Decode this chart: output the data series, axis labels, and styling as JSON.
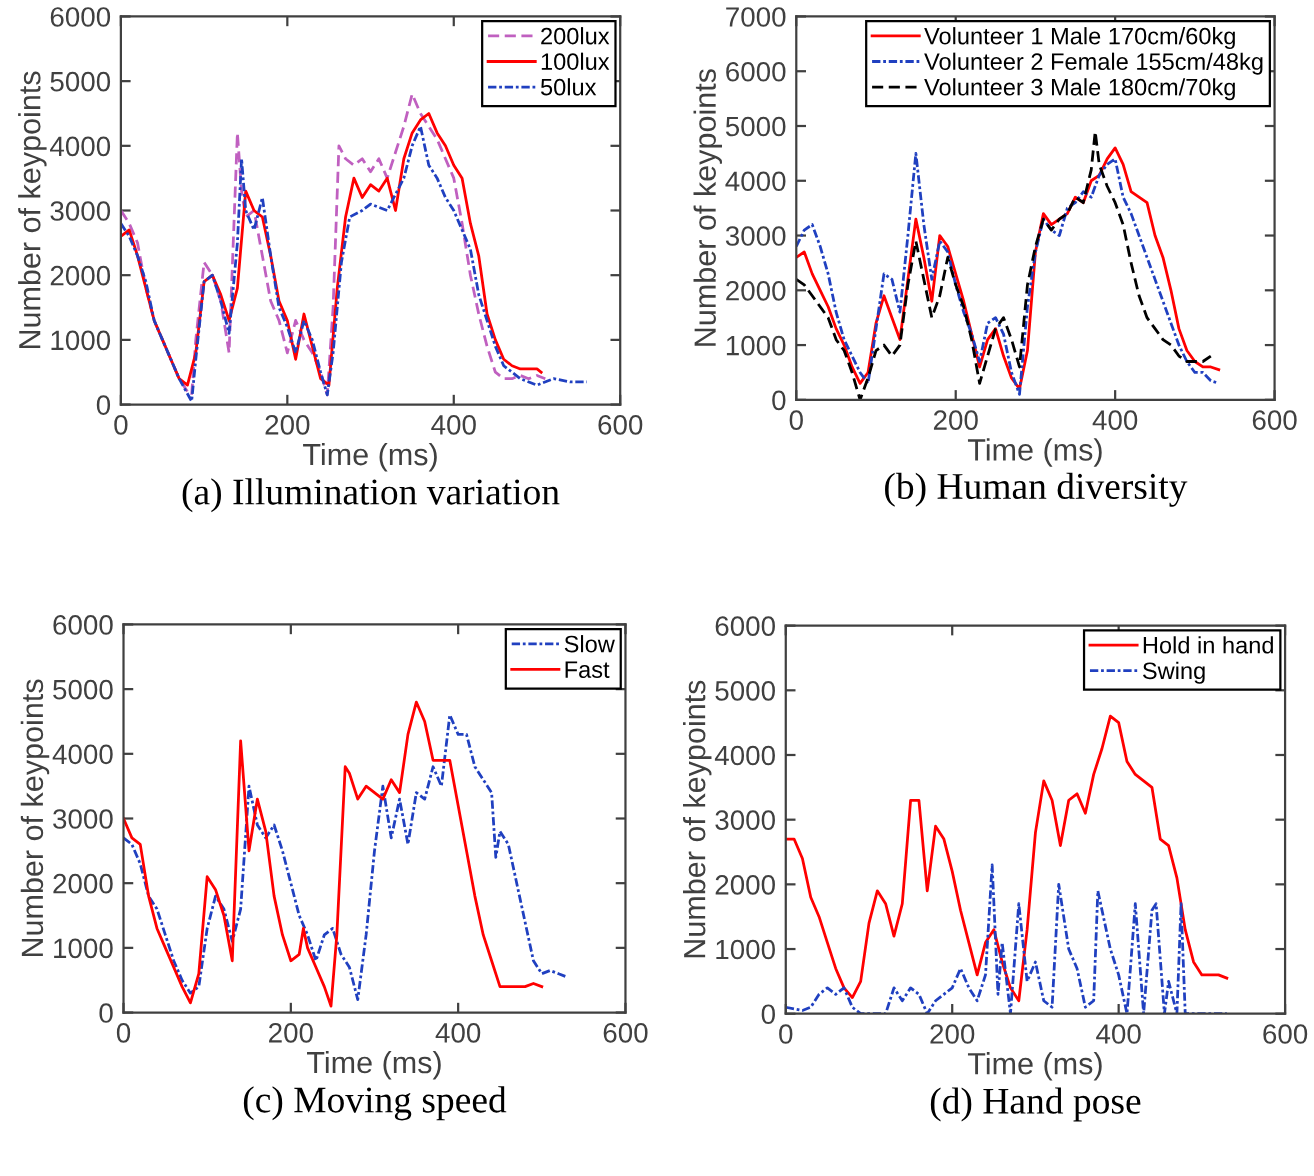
{
  "chart_data": [
    {
      "type": "line",
      "xlabel": "Time (ms)",
      "ylabel": "Number of keypoints",
      "xlim": [
        0,
        600
      ],
      "ylim": [
        0,
        6000
      ],
      "xticks": [
        0,
        200,
        400,
        600
      ],
      "yticks": [
        0,
        1000,
        2000,
        3000,
        4000,
        5000,
        6000
      ],
      "grid": false,
      "legend": "top right",
      "annotations": [
        "(a) Illumination variation"
      ],
      "series": [
        {
          "name": "200lux",
          "color": "#c060c0",
          "line_style": "dashed",
          "x": [
            0,
            10,
            20,
            30,
            40,
            50,
            60,
            70,
            80,
            85,
            90,
            100,
            110,
            120,
            130,
            140,
            145,
            150,
            160,
            170,
            180,
            190,
            200,
            210,
            220,
            230,
            240,
            248,
            255,
            262,
            270,
            280,
            290,
            300,
            310,
            320,
            330,
            340,
            350,
            360,
            370,
            380,
            390,
            400,
            410,
            420,
            430,
            440,
            450,
            460,
            470,
            480,
            490,
            500,
            510
          ],
          "values": [
            3000,
            2800,
            2500,
            1800,
            1300,
            1000,
            700,
            400,
            200,
            150,
            1000,
            2200,
            2000,
            1600,
            800,
            4200,
            3300,
            2900,
            3000,
            2300,
            1600,
            1300,
            800,
            1300,
            1000,
            800,
            500,
            150,
            1500,
            4000,
            3800,
            3700,
            3800,
            3600,
            3800,
            3500,
            3900,
            4300,
            4800,
            4500,
            4300,
            4100,
            3800,
            3500,
            2800,
            2000,
            1400,
            900,
            500,
            400,
            400,
            450,
            400,
            450,
            400
          ]
        },
        {
          "name": "100lux",
          "color": "#ff0000",
          "line_style": "solid",
          "x": [
            0,
            10,
            20,
            30,
            40,
            50,
            60,
            70,
            80,
            90,
            100,
            110,
            120,
            130,
            140,
            150,
            160,
            170,
            180,
            190,
            200,
            210,
            220,
            230,
            240,
            250,
            260,
            270,
            280,
            290,
            300,
            310,
            320,
            330,
            340,
            350,
            360,
            370,
            380,
            390,
            400,
            410,
            420,
            430,
            440,
            450,
            460,
            470,
            480,
            490,
            500,
            505
          ],
          "values": [
            2600,
            2700,
            2300,
            1800,
            1300,
            1000,
            700,
            400,
            300,
            800,
            1900,
            2000,
            1700,
            1300,
            1800,
            3300,
            3000,
            2900,
            2300,
            1600,
            1300,
            700,
            1400,
            900,
            400,
            300,
            1800,
            2900,
            3500,
            3200,
            3400,
            3300,
            3500,
            3000,
            3800,
            4200,
            4400,
            4500,
            4200,
            4000,
            3700,
            3500,
            2800,
            2300,
            1400,
            1000,
            700,
            600,
            550,
            550,
            550,
            500
          ]
        },
        {
          "name": "50lux",
          "color": "#2040c0",
          "line_style": "dotted",
          "x": [
            0,
            10,
            20,
            30,
            40,
            50,
            60,
            70,
            85,
            90,
            100,
            110,
            120,
            130,
            140,
            145,
            150,
            160,
            170,
            180,
            190,
            200,
            210,
            220,
            230,
            240,
            248,
            255,
            265,
            275,
            290,
            300,
            320,
            340,
            350,
            360,
            370,
            380,
            390,
            400,
            410,
            420,
            430,
            440,
            450,
            460,
            470,
            480,
            500,
            520,
            540,
            560
          ],
          "values": [
            2800,
            2600,
            2300,
            1900,
            1300,
            1000,
            700,
            400,
            50,
            700,
            1900,
            2000,
            1600,
            1100,
            2500,
            3800,
            3000,
            2700,
            3200,
            2300,
            1500,
            1200,
            800,
            1300,
            1000,
            500,
            150,
            800,
            2200,
            2900,
            3000,
            3100,
            3000,
            3500,
            4000,
            4300,
            3700,
            3500,
            3200,
            3000,
            2700,
            2400,
            1700,
            1300,
            900,
            600,
            500,
            400,
            300,
            400,
            350,
            350
          ]
        }
      ]
    },
    {
      "type": "line",
      "xlabel": "Time (ms)",
      "ylabel": "Number of keypoints",
      "xlim": [
        0,
        600
      ],
      "ylim": [
        0,
        7000
      ],
      "xticks": [
        0,
        200,
        400,
        600
      ],
      "yticks": [
        0,
        1000,
        2000,
        3000,
        4000,
        5000,
        6000,
        7000
      ],
      "grid": false,
      "legend": "top right",
      "annotations": [
        "(b) Human diversity"
      ],
      "series": [
        {
          "name": "Volunteer 1 Male 170cm/60kg",
          "color": "#ff0000",
          "line_style": "solid",
          "x": [
            0,
            10,
            20,
            30,
            40,
            50,
            60,
            70,
            80,
            90,
            100,
            110,
            120,
            130,
            140,
            150,
            160,
            170,
            180,
            190,
            200,
            210,
            220,
            230,
            240,
            250,
            260,
            270,
            280,
            290,
            300,
            310,
            320,
            330,
            340,
            350,
            360,
            370,
            380,
            390,
            400,
            410,
            420,
            430,
            440,
            450,
            460,
            470,
            480,
            490,
            500,
            510,
            520,
            530
          ],
          "values": [
            2600,
            2700,
            2300,
            2000,
            1700,
            1300,
            1000,
            600,
            300,
            500,
            1400,
            1900,
            1500,
            1100,
            2200,
            3300,
            2600,
            1800,
            3000,
            2800,
            2300,
            1800,
            1200,
            600,
            1100,
            1300,
            800,
            400,
            200,
            900,
            2700,
            3400,
            3200,
            3300,
            3400,
            3700,
            3600,
            4000,
            4100,
            4400,
            4600,
            4300,
            3800,
            3700,
            3600,
            3000,
            2600,
            2000,
            1300,
            900,
            700,
            600,
            600,
            550
          ]
        },
        {
          "name": "Volunteer 2 Female 155cm/48kg",
          "color": "#2040c0",
          "line_style": "dotted",
          "x": [
            0,
            10,
            20,
            30,
            40,
            50,
            60,
            70,
            80,
            90,
            100,
            110,
            120,
            130,
            140,
            150,
            160,
            170,
            180,
            190,
            200,
            210,
            220,
            230,
            240,
            250,
            260,
            270,
            280,
            290,
            300,
            310,
            320,
            330,
            340,
            350,
            360,
            370,
            380,
            390,
            400,
            410,
            420,
            430,
            440,
            450,
            460,
            470,
            480,
            490,
            500,
            510,
            520,
            530
          ],
          "values": [
            2800,
            3100,
            3200,
            2800,
            2300,
            1600,
            1100,
            800,
            500,
            300,
            1300,
            2300,
            2200,
            1600,
            3000,
            4500,
            3200,
            2200,
            2900,
            2700,
            2100,
            1600,
            1200,
            700,
            1400,
            1500,
            1200,
            500,
            100,
            1700,
            2700,
            3300,
            3100,
            3000,
            3500,
            3600,
            3800,
            3700,
            4100,
            4300,
            4400,
            3700,
            3400,
            3000,
            2600,
            2200,
            1800,
            1400,
            1000,
            700,
            500,
            500,
            350,
            300
          ]
        },
        {
          "name": "Volunteer 3 Male 180cm/70kg",
          "color": "#000000",
          "line_style": "dashed",
          "x": [
            0,
            10,
            20,
            30,
            40,
            50,
            60,
            70,
            80,
            90,
            100,
            110,
            120,
            130,
            140,
            150,
            160,
            170,
            180,
            190,
            200,
            210,
            220,
            230,
            240,
            250,
            260,
            270,
            280,
            290,
            300,
            310,
            320,
            330,
            340,
            350,
            360,
            370,
            375,
            380,
            390,
            400,
            410,
            420,
            430,
            440,
            450,
            460,
            470,
            480,
            490,
            500,
            510,
            520
          ],
          "values": [
            2200,
            2100,
            1900,
            1700,
            1500,
            1100,
            900,
            500,
            0,
            400,
            900,
            1000,
            800,
            1000,
            2100,
            2900,
            2200,
            1500,
            1900,
            2600,
            2100,
            1700,
            1100,
            300,
            800,
            1300,
            1500,
            1100,
            600,
            2100,
            2800,
            3300,
            3100,
            3300,
            3400,
            3700,
            3600,
            4200,
            4900,
            4300,
            3900,
            3600,
            3200,
            2500,
            1900,
            1500,
            1300,
            1100,
            1000,
            800,
            700,
            700,
            700,
            800
          ]
        }
      ]
    },
    {
      "type": "line",
      "xlabel": "Time (ms)",
      "ylabel": "Number of keypoints",
      "xlim": [
        0,
        600
      ],
      "ylim": [
        0,
        6000
      ],
      "xticks": [
        0,
        200,
        400,
        600
      ],
      "yticks": [
        0,
        1000,
        2000,
        3000,
        4000,
        5000,
        6000
      ],
      "grid": false,
      "legend": "top right",
      "annotations": [
        "(c) Moving speed"
      ],
      "series": [
        {
          "name": "Slow",
          "color": "#2040c0",
          "line_style": "dotted",
          "x": [
            0,
            10,
            20,
            30,
            40,
            50,
            60,
            70,
            80,
            90,
            100,
            110,
            120,
            130,
            140,
            150,
            160,
            170,
            180,
            190,
            200,
            210,
            220,
            230,
            240,
            250,
            260,
            270,
            280,
            290,
            300,
            310,
            320,
            330,
            340,
            350,
            360,
            370,
            380,
            390,
            400,
            410,
            420,
            430,
            440,
            445,
            450,
            460,
            470,
            480,
            490,
            500,
            510,
            520,
            530
          ],
          "values": [
            2700,
            2600,
            2300,
            1800,
            1600,
            1200,
            800,
            500,
            300,
            400,
            1300,
            1800,
            1600,
            1100,
            1600,
            3500,
            2900,
            2700,
            2900,
            2500,
            2000,
            1500,
            1200,
            800,
            1200,
            1300,
            900,
            700,
            200,
            1200,
            2500,
            3500,
            2700,
            3300,
            2600,
            3400,
            3300,
            3800,
            3500,
            4600,
            4300,
            4300,
            3800,
            3600,
            3400,
            2400,
            2800,
            2600,
            2000,
            1400,
            800,
            600,
            650,
            600,
            550
          ]
        },
        {
          "name": "Fast",
          "color": "#ff0000",
          "line_style": "solid",
          "x": [
            0,
            10,
            20,
            30,
            40,
            50,
            60,
            70,
            80,
            90,
            100,
            110,
            120,
            130,
            140,
            150,
            160,
            170,
            180,
            190,
            200,
            210,
            215,
            220,
            230,
            240,
            248,
            255,
            265,
            270,
            280,
            290,
            300,
            310,
            320,
            330,
            340,
            350,
            360,
            370,
            380,
            390,
            400,
            410,
            420,
            430,
            440,
            450,
            460,
            470,
            480,
            490,
            500
          ],
          "values": [
            3000,
            2700,
            2600,
            1800,
            1300,
            1000,
            700,
            400,
            150,
            600,
            2100,
            1900,
            1500,
            800,
            4200,
            2500,
            3300,
            2800,
            1800,
            1200,
            800,
            900,
            1300,
            1000,
            700,
            400,
            100,
            1200,
            3800,
            3700,
            3300,
            3500,
            3400,
            3300,
            3600,
            3400,
            4300,
            4800,
            4500,
            3900,
            3900,
            3900,
            3200,
            2500,
            1800,
            1200,
            800,
            400,
            400,
            400,
            400,
            450,
            400
          ]
        }
      ]
    },
    {
      "type": "line",
      "xlabel": "Time (ms)",
      "ylabel": "Number of keypoints",
      "xlim": [
        0,
        600
      ],
      "ylim": [
        0,
        6000
      ],
      "xticks": [
        0,
        200,
        400,
        600
      ],
      "yticks": [
        0,
        1000,
        2000,
        3000,
        4000,
        5000,
        6000
      ],
      "grid": false,
      "legend": "top right",
      "annotations": [
        "(d) Hand pose"
      ],
      "series": [
        {
          "name": "Hold in hand",
          "color": "#ff0000",
          "line_style": "solid",
          "x": [
            0,
            10,
            20,
            30,
            40,
            50,
            60,
            70,
            80,
            90,
            100,
            110,
            120,
            130,
            140,
            150,
            160,
            170,
            180,
            190,
            200,
            210,
            220,
            230,
            240,
            250,
            260,
            270,
            280,
            290,
            300,
            310,
            320,
            330,
            340,
            350,
            360,
            370,
            380,
            390,
            400,
            410,
            420,
            430,
            440,
            450,
            460,
            470,
            480,
            490,
            500,
            510,
            520,
            530
          ],
          "values": [
            2700,
            2700,
            2400,
            1800,
            1500,
            1100,
            700,
            400,
            250,
            500,
            1400,
            1900,
            1700,
            1200,
            1700,
            3300,
            3300,
            1900,
            2900,
            2700,
            2200,
            1600,
            1100,
            600,
            1100,
            1300,
            800,
            400,
            200,
            1300,
            2800,
            3600,
            3300,
            2600,
            3300,
            3400,
            3100,
            3700,
            4100,
            4600,
            4500,
            3900,
            3700,
            3600,
            3500,
            2700,
            2600,
            2100,
            1300,
            800,
            600,
            600,
            600,
            550
          ]
        },
        {
          "name": "Swing",
          "color": "#2040c0",
          "line_style": "dotted",
          "x": [
            0,
            20,
            30,
            40,
            50,
            60,
            70,
            80,
            90,
            120,
            130,
            140,
            150,
            160,
            170,
            180,
            190,
            200,
            210,
            220,
            230,
            240,
            248,
            255,
            260,
            270,
            280,
            290,
            300,
            310,
            320,
            328,
            340,
            350,
            360,
            370,
            375,
            390,
            400,
            410,
            420,
            430,
            440,
            445,
            455,
            460,
            470,
            475,
            480,
            500,
            530
          ],
          "values": [
            100,
            50,
            100,
            300,
            400,
            300,
            400,
            100,
            0,
            0,
            400,
            200,
            400,
            300,
            0,
            200,
            300,
            400,
            700,
            400,
            200,
            600,
            2300,
            300,
            1100,
            0,
            1700,
            500,
            800,
            200,
            100,
            2000,
            1000,
            700,
            100,
            200,
            1900,
            1000,
            600,
            0,
            1700,
            0,
            1600,
            1700,
            0,
            500,
            0,
            1700,
            0,
            0,
            0
          ]
        }
      ]
    }
  ]
}
